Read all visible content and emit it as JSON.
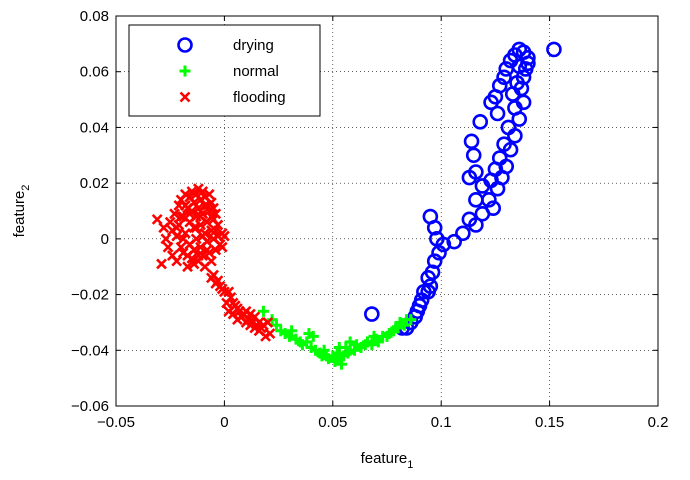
{
  "chart_data": {
    "type": "scatter",
    "xlabel": "feature",
    "xlabel_sub": "1",
    "ylabel": "feature",
    "ylabel_sub": "2",
    "xlim": [
      -0.05,
      0.2
    ],
    "ylim": [
      -0.06,
      0.08
    ],
    "xticks": [
      -0.05,
      0,
      0.05,
      0.1,
      0.15,
      0.2
    ],
    "xtick_labels": [
      "−0.05",
      "0",
      "0.05",
      "0.1",
      "0.15",
      "0.2"
    ],
    "yticks": [
      -0.06,
      -0.04,
      -0.02,
      0,
      0.02,
      0.04,
      0.06,
      0.08
    ],
    "ytick_labels": [
      "−0.06",
      "−0.04",
      "−0.02",
      "0",
      "0.02",
      "0.04",
      "0.06",
      "0.08"
    ],
    "grid": true,
    "legend_position": "top-left",
    "series": [
      {
        "name": "drying",
        "marker": "circle",
        "color": "#0000ff",
        "points": [
          [
            0.152,
            0.068
          ],
          [
            0.14,
            0.065
          ],
          [
            0.138,
            0.067
          ],
          [
            0.136,
            0.068
          ],
          [
            0.134,
            0.066
          ],
          [
            0.132,
            0.064
          ],
          [
            0.13,
            0.061
          ],
          [
            0.136,
            0.062
          ],
          [
            0.14,
            0.063
          ],
          [
            0.139,
            0.061
          ],
          [
            0.138,
            0.058
          ],
          [
            0.129,
            0.058
          ],
          [
            0.127,
            0.055
          ],
          [
            0.135,
            0.056
          ],
          [
            0.125,
            0.051
          ],
          [
            0.137,
            0.054
          ],
          [
            0.123,
            0.049
          ],
          [
            0.133,
            0.052
          ],
          [
            0.138,
            0.049
          ],
          [
            0.126,
            0.045
          ],
          [
            0.134,
            0.047
          ],
          [
            0.118,
            0.042
          ],
          [
            0.136,
            0.043
          ],
          [
            0.131,
            0.04
          ],
          [
            0.134,
            0.037
          ],
          [
            0.114,
            0.035
          ],
          [
            0.129,
            0.034
          ],
          [
            0.132,
            0.032
          ],
          [
            0.127,
            0.029
          ],
          [
            0.115,
            0.03
          ],
          [
            0.116,
            0.024
          ],
          [
            0.13,
            0.026
          ],
          [
            0.125,
            0.025
          ],
          [
            0.128,
            0.022
          ],
          [
            0.113,
            0.022
          ],
          [
            0.123,
            0.021
          ],
          [
            0.119,
            0.019
          ],
          [
            0.126,
            0.018
          ],
          [
            0.122,
            0.014
          ],
          [
            0.116,
            0.014
          ],
          [
            0.124,
            0.011
          ],
          [
            0.119,
            0.009
          ],
          [
            0.113,
            0.007
          ],
          [
            0.095,
            0.008
          ],
          [
            0.116,
            0.005
          ],
          [
            0.097,
            0.004
          ],
          [
            0.11,
            0.002
          ],
          [
            0.106,
            -0.001
          ],
          [
            0.098,
            0.0
          ],
          [
            0.101,
            -0.002
          ],
          [
            0.099,
            -0.005
          ],
          [
            0.097,
            -0.008
          ],
          [
            0.096,
            -0.012
          ],
          [
            0.094,
            -0.014
          ],
          [
            0.095,
            -0.017
          ],
          [
            0.094,
            -0.019
          ],
          [
            0.092,
            -0.019
          ],
          [
            0.091,
            -0.022
          ],
          [
            0.09,
            -0.024
          ],
          [
            0.089,
            -0.026
          ],
          [
            0.088,
            -0.028
          ],
          [
            0.086,
            -0.03
          ],
          [
            0.068,
            -0.027
          ],
          [
            0.084,
            -0.032
          ],
          [
            0.082,
            -0.032
          ]
        ]
      },
      {
        "name": "normal",
        "marker": "plus",
        "color": "#00ff00",
        "points": [
          [
            0.018,
            -0.026
          ],
          [
            0.022,
            -0.029
          ],
          [
            0.024,
            -0.031
          ],
          [
            0.026,
            -0.033
          ],
          [
            0.028,
            -0.034
          ],
          [
            0.03,
            -0.035
          ],
          [
            0.031,
            -0.033
          ],
          [
            0.033,
            -0.036
          ],
          [
            0.035,
            -0.037
          ],
          [
            0.036,
            -0.038
          ],
          [
            0.038,
            -0.037
          ],
          [
            0.04,
            -0.039
          ],
          [
            0.041,
            -0.035
          ],
          [
            0.042,
            -0.04
          ],
          [
            0.044,
            -0.041
          ],
          [
            0.045,
            -0.042
          ],
          [
            0.046,
            -0.04
          ],
          [
            0.048,
            -0.043
          ],
          [
            0.05,
            -0.042
          ],
          [
            0.051,
            -0.044
          ],
          [
            0.052,
            -0.041
          ],
          [
            0.053,
            -0.043
          ],
          [
            0.054,
            -0.045
          ],
          [
            0.055,
            -0.042
          ],
          [
            0.056,
            -0.039
          ],
          [
            0.057,
            -0.041
          ],
          [
            0.058,
            -0.04
          ],
          [
            0.06,
            -0.04
          ],
          [
            0.061,
            -0.038
          ],
          [
            0.063,
            -0.039
          ],
          [
            0.065,
            -0.038
          ],
          [
            0.066,
            -0.037
          ],
          [
            0.068,
            -0.038
          ],
          [
            0.07,
            -0.036
          ],
          [
            0.071,
            -0.037
          ],
          [
            0.073,
            -0.035
          ],
          [
            0.075,
            -0.035
          ],
          [
            0.076,
            -0.034
          ],
          [
            0.078,
            -0.033
          ],
          [
            0.08,
            -0.032
          ],
          [
            0.081,
            -0.03
          ],
          [
            0.083,
            -0.031
          ],
          [
            0.084,
            -0.029
          ],
          [
            0.086,
            -0.029
          ],
          [
            0.079,
            -0.032
          ],
          [
            0.039,
            -0.034
          ],
          [
            0.047,
            -0.042
          ],
          [
            0.053,
            -0.039
          ],
          [
            0.058,
            -0.037
          ],
          [
            0.069,
            -0.035
          ]
        ]
      },
      {
        "name": "flooding",
        "marker": "x",
        "color": "#ff0000",
        "points": [
          [
            -0.029,
            -0.009
          ],
          [
            -0.031,
            0.007
          ],
          [
            -0.028,
            0.004
          ],
          [
            -0.027,
            0.0
          ],
          [
            -0.026,
            -0.003
          ],
          [
            -0.025,
            0.006
          ],
          [
            -0.024,
            0.003
          ],
          [
            -0.024,
            -0.006
          ],
          [
            -0.023,
            0.009
          ],
          [
            -0.022,
            0.001
          ],
          [
            -0.022,
            -0.008
          ],
          [
            -0.021,
            0.012
          ],
          [
            -0.021,
            0.005
          ],
          [
            -0.02,
            -0.003
          ],
          [
            -0.02,
            0.014
          ],
          [
            -0.019,
            0.008
          ],
          [
            -0.019,
            -0.005
          ],
          [
            -0.018,
            0.016
          ],
          [
            -0.018,
            0.002
          ],
          [
            -0.017,
            0.011
          ],
          [
            -0.017,
            -0.01
          ],
          [
            -0.016,
            0.015
          ],
          [
            -0.016,
            0.006
          ],
          [
            -0.016,
            -0.002
          ],
          [
            -0.015,
            0.017
          ],
          [
            -0.015,
            0.01
          ],
          [
            -0.015,
            -0.007
          ],
          [
            -0.014,
            0.013
          ],
          [
            -0.014,
            0.004
          ],
          [
            -0.014,
            -0.004
          ],
          [
            -0.013,
            0.016
          ],
          [
            -0.013,
            0.008
          ],
          [
            -0.013,
            0.0
          ],
          [
            -0.012,
            0.018
          ],
          [
            -0.012,
            0.011
          ],
          [
            -0.012,
            -0.008
          ],
          [
            -0.011,
            0.014
          ],
          [
            -0.011,
            0.005
          ],
          [
            -0.011,
            -0.003
          ],
          [
            -0.01,
            0.017
          ],
          [
            -0.01,
            0.009
          ],
          [
            -0.01,
            -0.006
          ],
          [
            -0.009,
            0.015
          ],
          [
            -0.009,
            0.002
          ],
          [
            -0.009,
            -0.01
          ],
          [
            -0.008,
            0.012
          ],
          [
            -0.008,
            0.006
          ],
          [
            -0.008,
            -0.001
          ],
          [
            -0.007,
            0.016
          ],
          [
            -0.007,
            0.01
          ],
          [
            -0.007,
            -0.005
          ],
          [
            -0.006,
            0.013
          ],
          [
            -0.006,
            0.003
          ],
          [
            -0.006,
            -0.008
          ],
          [
            -0.005,
            0.011
          ],
          [
            -0.005,
            0.007
          ],
          [
            -0.005,
            0.0
          ],
          [
            -0.004,
            0.009
          ],
          [
            -0.004,
            -0.004
          ],
          [
            -0.003,
            0.005
          ],
          [
            -0.003,
            0.001
          ],
          [
            -0.002,
            -0.002
          ],
          [
            -0.001,
            0.002
          ],
          [
            -0.001,
            -0.003
          ],
          [
            0.0,
            0.001
          ],
          [
            -0.018,
            0.012
          ],
          [
            -0.016,
            0.009
          ],
          [
            -0.013,
            0.004
          ],
          [
            -0.011,
            0.008
          ],
          [
            -0.009,
            0.012
          ],
          [
            -0.006,
            0.008
          ],
          [
            -0.004,
            0.003
          ],
          [
            -0.02,
            0.008
          ],
          [
            -0.022,
            0.004
          ],
          [
            -0.017,
            -0.006
          ],
          [
            -0.019,
            0.0
          ],
          [
            -0.014,
            -0.009
          ],
          [
            -0.012,
            -0.006
          ],
          [
            -0.01,
            0.001
          ],
          [
            -0.008,
            -0.004
          ],
          [
            -0.006,
            -0.014
          ],
          [
            -0.005,
            -0.013
          ],
          [
            -0.003,
            -0.015
          ],
          [
            -0.002,
            -0.017
          ],
          [
            -0.004,
            -0.016
          ],
          [
            -0.001,
            -0.018
          ],
          [
            0.0,
            -0.019
          ],
          [
            0.002,
            -0.019
          ],
          [
            0.003,
            -0.021
          ],
          [
            0.001,
            -0.023
          ],
          [
            0.004,
            -0.023
          ],
          [
            0.005,
            -0.024
          ],
          [
            0.002,
            -0.026
          ],
          [
            0.006,
            -0.025
          ],
          [
            0.007,
            -0.026
          ],
          [
            0.004,
            -0.027
          ],
          [
            0.008,
            -0.028
          ],
          [
            0.009,
            -0.027
          ],
          [
            0.006,
            -0.029
          ],
          [
            0.01,
            -0.03
          ],
          [
            0.011,
            -0.029
          ],
          [
            0.012,
            -0.031
          ],
          [
            0.013,
            -0.03
          ],
          [
            0.014,
            -0.032
          ],
          [
            0.015,
            -0.031
          ],
          [
            0.016,
            -0.033
          ],
          [
            0.017,
            -0.032
          ],
          [
            0.018,
            -0.031
          ],
          [
            0.02,
            -0.03
          ],
          [
            0.021,
            -0.034
          ],
          [
            0.019,
            -0.035
          ],
          [
            0.016,
            -0.03
          ],
          [
            0.014,
            -0.028
          ],
          [
            0.012,
            -0.027
          ],
          [
            0.01,
            -0.026
          ]
        ]
      }
    ]
  }
}
